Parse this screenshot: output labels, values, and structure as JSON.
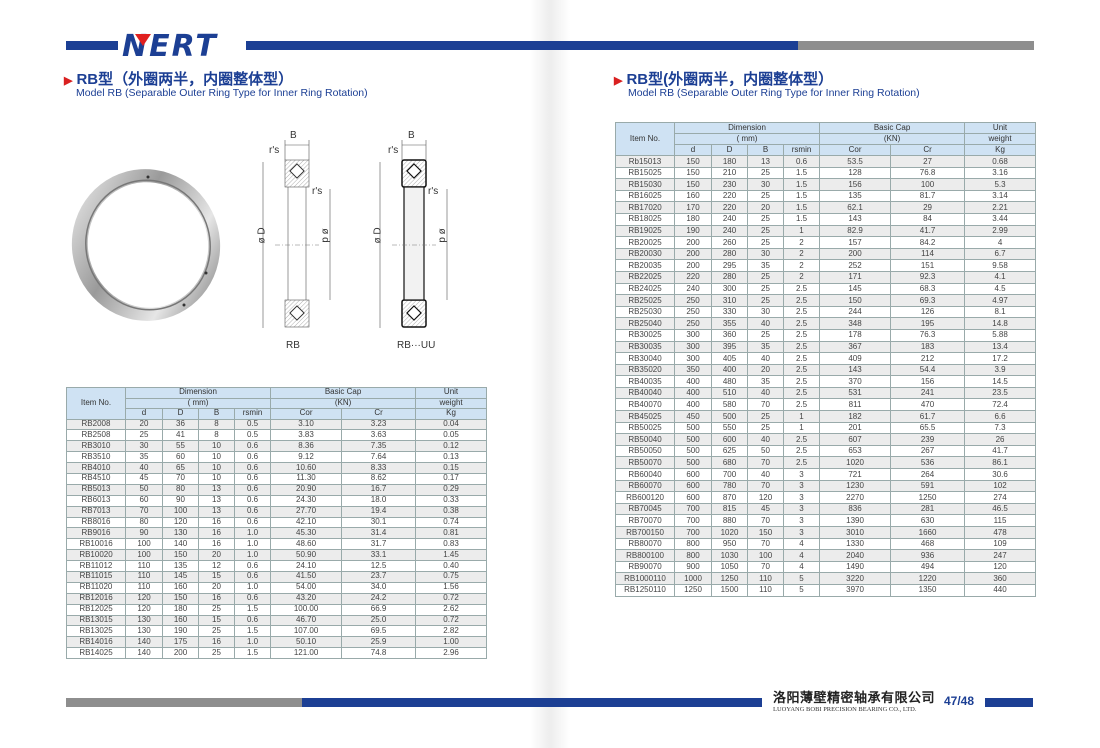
{
  "brand": {
    "logo_text": "NERT",
    "blue": "#1c3f94",
    "red": "#e02020",
    "gray": "#8e8e8e"
  },
  "left": {
    "title_cn": "RB型（外圈两半，内圈整体型）",
    "title_en": "Model RB (Separable Outer Ring Type for Inner Ring Rotation)",
    "drawing": {
      "dim_B": "B",
      "dim_rs": "r's",
      "dim_rs2": "r's",
      "dim_D": "ø D",
      "dim_d": "ø d",
      "label_rb": "RB",
      "label_rbuu": "RB···UU"
    },
    "table": {
      "header": {
        "item": "Item No.",
        "dimension": "Dimension",
        "mm": "( mm)",
        "basic_cap": "Basic Cap",
        "kn": "(KN)",
        "unit": "Unit",
        "weight": "weight",
        "cols": [
          "d",
          "D",
          "B",
          "rsmin",
          "Cor",
          "Cr",
          "Kg"
        ]
      },
      "rows": [
        [
          "RB2008",
          "20",
          "36",
          "8",
          "0.5",
          "3.10",
          "3.23",
          "0.04"
        ],
        [
          "RB2508",
          "25",
          "41",
          "8",
          "0.5",
          "3.83",
          "3.63",
          "0.05"
        ],
        [
          "RB3010",
          "30",
          "55",
          "10",
          "0.6",
          "8.36",
          "7.35",
          "0.12"
        ],
        [
          "RB3510",
          "35",
          "60",
          "10",
          "0.6",
          "9.12",
          "7.64",
          "0.13"
        ],
        [
          "RB4010",
          "40",
          "65",
          "10",
          "0.6",
          "10.60",
          "8.33",
          "0.15"
        ],
        [
          "RB4510",
          "45",
          "70",
          "10",
          "0.6",
          "11.30",
          "8.62",
          "0.17"
        ],
        [
          "RB5013",
          "50",
          "80",
          "13",
          "0.6",
          "20.90",
          "16.7",
          "0.29"
        ],
        [
          "RB6013",
          "60",
          "90",
          "13",
          "0.6",
          "24.30",
          "18.0",
          "0.33"
        ],
        [
          "RB7013",
          "70",
          "100",
          "13",
          "0.6",
          "27.70",
          "19.4",
          "0.38"
        ],
        [
          "RB8016",
          "80",
          "120",
          "16",
          "0.6",
          "42.10",
          "30.1",
          "0.74"
        ],
        [
          "RB9016",
          "90",
          "130",
          "16",
          "1.0",
          "45.30",
          "31.4",
          "0.81"
        ],
        [
          "RB10016",
          "100",
          "140",
          "16",
          "1.0",
          "48.60",
          "31.7",
          "0.83"
        ],
        [
          "RB10020",
          "100",
          "150",
          "20",
          "1.0",
          "50.90",
          "33.1",
          "1.45"
        ],
        [
          "RB11012",
          "110",
          "135",
          "12",
          "0.6",
          "24.10",
          "12.5",
          "0.40"
        ],
        [
          "RB11015",
          "110",
          "145",
          "15",
          "0.6",
          "41.50",
          "23.7",
          "0.75"
        ],
        [
          "RB11020",
          "110",
          "160",
          "20",
          "1.0",
          "54.00",
          "34.0",
          "1.56"
        ],
        [
          "RB12016",
          "120",
          "150",
          "16",
          "0.6",
          "43.20",
          "24.2",
          "0.72"
        ],
        [
          "RB12025",
          "120",
          "180",
          "25",
          "1.5",
          "100.00",
          "66.9",
          "2.62"
        ],
        [
          "RB13015",
          "130",
          "160",
          "15",
          "0.6",
          "46.70",
          "25.0",
          "0.72"
        ],
        [
          "RB13025",
          "130",
          "190",
          "25",
          "1.5",
          "107.00",
          "69.5",
          "2.82"
        ],
        [
          "RB14016",
          "140",
          "175",
          "16",
          "1.0",
          "50.10",
          "25.9",
          "1.00"
        ],
        [
          "RB14025",
          "140",
          "200",
          "25",
          "1.5",
          "121.00",
          "74.8",
          "2.96"
        ]
      ]
    }
  },
  "right": {
    "title_cn": "RB型(外圈两半，内圈整体型）",
    "title_en": "Model RB (Separable Outer Ring Type for Inner Ring Rotation)",
    "table": {
      "header": {
        "item": "Item No.",
        "dimension": "Dimension",
        "mm": "( mm)",
        "basic_cap": "Basic Cap",
        "kn": "(KN)",
        "unit": "Unit",
        "weight": "weight",
        "cols": [
          "d",
          "D",
          "B",
          "rsmin",
          "Cor",
          "Cr",
          "Kg"
        ]
      },
      "rows": [
        [
          "Rb15013",
          "150",
          "180",
          "13",
          "0.6",
          "53.5",
          "27",
          "0.68"
        ],
        [
          "RB15025",
          "150",
          "210",
          "25",
          "1.5",
          "128",
          "76.8",
          "3.16"
        ],
        [
          "RB15030",
          "150",
          "230",
          "30",
          "1.5",
          "156",
          "100",
          "5.3"
        ],
        [
          "RB16025",
          "160",
          "220",
          "25",
          "1.5",
          "135",
          "81.7",
          "3.14"
        ],
        [
          "RB17020",
          "170",
          "220",
          "20",
          "1.5",
          "62.1",
          "29",
          "2.21"
        ],
        [
          "RB18025",
          "180",
          "240",
          "25",
          "1.5",
          "143",
          "84",
          "3.44"
        ],
        [
          "RB19025",
          "190",
          "240",
          "25",
          "1",
          "82.9",
          "41.7",
          "2.99"
        ],
        [
          "RB20025",
          "200",
          "260",
          "25",
          "2",
          "157",
          "84.2",
          "4"
        ],
        [
          "RB20030",
          "200",
          "280",
          "30",
          "2",
          "200",
          "114",
          "6.7"
        ],
        [
          "RB20035",
          "200",
          "295",
          "35",
          "2",
          "252",
          "151",
          "9.58"
        ],
        [
          "RB22025",
          "220",
          "280",
          "25",
          "2",
          "171",
          "92.3",
          "4.1"
        ],
        [
          "RB24025",
          "240",
          "300",
          "25",
          "2.5",
          "145",
          "68.3",
          "4.5"
        ],
        [
          "RB25025",
          "250",
          "310",
          "25",
          "2.5",
          "150",
          "69.3",
          "4.97"
        ],
        [
          "RB25030",
          "250",
          "330",
          "30",
          "2.5",
          "244",
          "126",
          "8.1"
        ],
        [
          "RB25040",
          "250",
          "355",
          "40",
          "2.5",
          "348",
          "195",
          "14.8"
        ],
        [
          "RB30025",
          "300",
          "360",
          "25",
          "2.5",
          "178",
          "76.3",
          "5.88"
        ],
        [
          "RB30035",
          "300",
          "395",
          "35",
          "2.5",
          "367",
          "183",
          "13.4"
        ],
        [
          "RB30040",
          "300",
          "405",
          "40",
          "2.5",
          "409",
          "212",
          "17.2"
        ],
        [
          "RB35020",
          "350",
          "400",
          "20",
          "2.5",
          "143",
          "54.4",
          "3.9"
        ],
        [
          "RB40035",
          "400",
          "480",
          "35",
          "2.5",
          "370",
          "156",
          "14.5"
        ],
        [
          "RB40040",
          "400",
          "510",
          "40",
          "2.5",
          "531",
          "241",
          "23.5"
        ],
        [
          "RB40070",
          "400",
          "580",
          "70",
          "2.5",
          "811",
          "470",
          "72.4"
        ],
        [
          "RB45025",
          "450",
          "500",
          "25",
          "1",
          "182",
          "61.7",
          "6.6"
        ],
        [
          "RB50025",
          "500",
          "550",
          "25",
          "1",
          "201",
          "65.5",
          "7.3"
        ],
        [
          "RB50040",
          "500",
          "600",
          "40",
          "2.5",
          "607",
          "239",
          "26"
        ],
        [
          "RB50050",
          "500",
          "625",
          "50",
          "2.5",
          "653",
          "267",
          "41.7"
        ],
        [
          "RB50070",
          "500",
          "680",
          "70",
          "2.5",
          "1020",
          "536",
          "86.1"
        ],
        [
          "RB60040",
          "600",
          "700",
          "40",
          "3",
          "721",
          "264",
          "30.6"
        ],
        [
          "RB60070",
          "600",
          "780",
          "70",
          "3",
          "1230",
          "591",
          "102"
        ],
        [
          "RB600120",
          "600",
          "870",
          "120",
          "3",
          "2270",
          "1250",
          "274"
        ],
        [
          "RB70045",
          "700",
          "815",
          "45",
          "3",
          "836",
          "281",
          "46.5"
        ],
        [
          "RB70070",
          "700",
          "880",
          "70",
          "3",
          "1390",
          "630",
          "115"
        ],
        [
          "RB700150",
          "700",
          "1020",
          "150",
          "3",
          "3010",
          "1660",
          "478"
        ],
        [
          "RB80070",
          "800",
          "950",
          "70",
          "4",
          "1330",
          "468",
          "109"
        ],
        [
          "RB800100",
          "800",
          "1030",
          "100",
          "4",
          "2040",
          "936",
          "247"
        ],
        [
          "RB90070",
          "900",
          "1050",
          "70",
          "4",
          "1490",
          "494",
          "120"
        ],
        [
          "RB1000110",
          "1000",
          "1250",
          "110",
          "5",
          "3220",
          "1220",
          "360"
        ],
        [
          "RB1250110",
          "1250",
          "1500",
          "110",
          "5",
          "3970",
          "1350",
          "440"
        ]
      ]
    }
  },
  "footer": {
    "company_cn": "洛阳薄壁精密轴承有限公司",
    "company_en": "LUOYANG BOBI PRECISION BEARING CO., LTD.",
    "page": "47/48"
  }
}
